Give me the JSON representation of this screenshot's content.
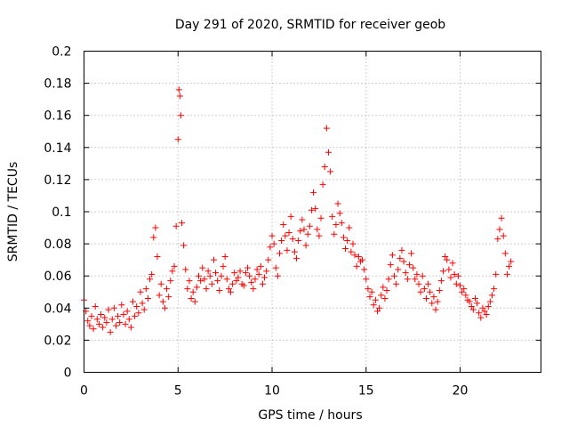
{
  "chart_data": {
    "type": "scatter",
    "title": "Day 291 of 2020, SRMTID for receiver geob",
    "xlabel": "GPS time / hours",
    "ylabel": "SRMTID / TECUs",
    "xlim": [
      0,
      24.3
    ],
    "ylim": [
      0,
      0.2
    ],
    "xticks": [
      0,
      5,
      10,
      15,
      20
    ],
    "xtick_labels": [
      "0",
      "5",
      "10",
      "15",
      "20"
    ],
    "yticks": [
      0,
      0.02,
      0.04,
      0.06,
      0.08,
      0.1,
      0.12,
      0.14,
      0.16,
      0.18,
      0.2
    ],
    "ytick_labels": [
      "0",
      "0.02",
      "0.04",
      "0.06",
      "0.08",
      "0.1",
      "0.12",
      "0.14",
      "0.16",
      "0.18",
      "0.2"
    ],
    "grid": true,
    "marker": "+",
    "color": "#ff0000",
    "series": [
      {
        "name": "SRMTID",
        "x": [
          0.0,
          0.1,
          0.2,
          0.3,
          0.4,
          0.5,
          0.6,
          0.7,
          0.8,
          0.9,
          1.0,
          1.1,
          1.2,
          1.3,
          1.4,
          1.5,
          1.6,
          1.7,
          1.8,
          1.9,
          2.0,
          2.1,
          2.2,
          2.3,
          2.4,
          2.5,
          2.6,
          2.7,
          2.8,
          2.9,
          3.0,
          3.1,
          3.2,
          3.3,
          3.4,
          3.5,
          3.6,
          3.7,
          3.8,
          3.9,
          4.0,
          4.1,
          4.2,
          4.3,
          4.4,
          4.5,
          4.6,
          4.7,
          4.8,
          4.9,
          5.0,
          5.05,
          5.1,
          5.15,
          5.2,
          5.3,
          5.4,
          5.5,
          5.6,
          5.7,
          5.8,
          5.9,
          6.0,
          6.1,
          6.2,
          6.3,
          6.4,
          6.5,
          6.6,
          6.7,
          6.8,
          6.9,
          7.0,
          7.1,
          7.2,
          7.3,
          7.4,
          7.5,
          7.6,
          7.7,
          7.8,
          7.9,
          8.0,
          8.1,
          8.2,
          8.3,
          8.4,
          8.5,
          8.6,
          8.7,
          8.8,
          8.9,
          9.0,
          9.1,
          9.2,
          9.3,
          9.4,
          9.5,
          9.6,
          9.7,
          9.8,
          9.9,
          10.0,
          10.1,
          10.2,
          10.3,
          10.4,
          10.5,
          10.6,
          10.7,
          10.8,
          10.9,
          11.0,
          11.1,
          11.2,
          11.3,
          11.4,
          11.5,
          11.6,
          11.7,
          11.8,
          11.9,
          12.0,
          12.1,
          12.2,
          12.3,
          12.4,
          12.5,
          12.6,
          12.7,
          12.8,
          12.9,
          13.0,
          13.1,
          13.2,
          13.3,
          13.4,
          13.5,
          13.6,
          13.7,
          13.8,
          13.9,
          14.0,
          14.1,
          14.2,
          14.3,
          14.4,
          14.5,
          14.6,
          14.7,
          14.8,
          14.9,
          15.0,
          15.1,
          15.2,
          15.3,
          15.4,
          15.5,
          15.6,
          15.7,
          15.8,
          15.9,
          16.0,
          16.1,
          16.2,
          16.3,
          16.4,
          16.5,
          16.6,
          16.7,
          16.8,
          16.9,
          17.0,
          17.1,
          17.2,
          17.3,
          17.4,
          17.5,
          17.6,
          17.7,
          17.8,
          17.9,
          18.0,
          18.1,
          18.2,
          18.3,
          18.4,
          18.5,
          18.6,
          18.7,
          18.8,
          18.9,
          19.0,
          19.1,
          19.2,
          19.3,
          19.4,
          19.5,
          19.6,
          19.7,
          19.8,
          19.9,
          20.0,
          20.1,
          20.2,
          20.3,
          20.4,
          20.5,
          20.6,
          20.7,
          20.8,
          20.9,
          21.0,
          21.1,
          21.2,
          21.3,
          21.4,
          21.5,
          21.6,
          21.7,
          21.8,
          21.9,
          22.0,
          22.1,
          22.2,
          22.3,
          22.4,
          22.5,
          22.6,
          22.7
        ],
        "y": [
          0.045,
          0.038,
          0.032,
          0.029,
          0.035,
          0.027,
          0.041,
          0.033,
          0.03,
          0.036,
          0.028,
          0.034,
          0.031,
          0.039,
          0.025,
          0.033,
          0.04,
          0.029,
          0.035,
          0.031,
          0.042,
          0.036,
          0.03,
          0.038,
          0.033,
          0.028,
          0.044,
          0.035,
          0.041,
          0.037,
          0.05,
          0.043,
          0.039,
          0.052,
          0.046,
          0.058,
          0.061,
          0.084,
          0.09,
          0.072,
          0.048,
          0.055,
          0.044,
          0.04,
          0.052,
          0.047,
          0.057,
          0.063,
          0.066,
          0.091,
          0.145,
          0.176,
          0.172,
          0.16,
          0.093,
          0.079,
          0.064,
          0.052,
          0.057,
          0.046,
          0.05,
          0.044,
          0.053,
          0.06,
          0.057,
          0.065,
          0.058,
          0.052,
          0.063,
          0.06,
          0.055,
          0.07,
          0.062,
          0.057,
          0.051,
          0.06,
          0.066,
          0.072,
          0.058,
          0.052,
          0.05,
          0.055,
          0.062,
          0.057,
          0.059,
          0.063,
          0.055,
          0.054,
          0.062,
          0.065,
          0.06,
          0.056,
          0.052,
          0.058,
          0.064,
          0.061,
          0.066,
          0.055,
          0.059,
          0.063,
          0.07,
          0.078,
          0.085,
          0.08,
          0.065,
          0.06,
          0.074,
          0.082,
          0.092,
          0.085,
          0.076,
          0.087,
          0.097,
          0.083,
          0.075,
          0.071,
          0.082,
          0.088,
          0.095,
          0.089,
          0.079,
          0.086,
          0.091,
          0.101,
          0.112,
          0.102,
          0.089,
          0.085,
          0.096,
          0.117,
          0.128,
          0.152,
          0.137,
          0.125,
          0.097,
          0.086,
          0.092,
          0.105,
          0.099,
          0.093,
          0.084,
          0.077,
          0.082,
          0.09,
          0.075,
          0.08,
          0.073,
          0.066,
          0.072,
          0.069,
          0.07,
          0.064,
          0.058,
          0.052,
          0.047,
          0.05,
          0.042,
          0.045,
          0.038,
          0.04,
          0.048,
          0.053,
          0.046,
          0.051,
          0.058,
          0.067,
          0.073,
          0.06,
          0.055,
          0.064,
          0.071,
          0.076,
          0.069,
          0.062,
          0.058,
          0.067,
          0.074,
          0.065,
          0.058,
          0.061,
          0.055,
          0.05,
          0.06,
          0.052,
          0.046,
          0.055,
          0.05,
          0.043,
          0.047,
          0.039,
          0.044,
          0.051,
          0.057,
          0.063,
          0.072,
          0.07,
          0.064,
          0.059,
          0.068,
          0.061,
          0.055,
          0.06,
          0.054,
          0.05,
          0.052,
          0.048,
          0.045,
          0.044,
          0.041,
          0.039,
          0.046,
          0.043,
          0.037,
          0.034,
          0.04,
          0.038,
          0.036,
          0.041,
          0.044,
          0.048,
          0.052,
          0.061,
          0.083,
          0.089,
          0.096,
          0.085,
          0.074,
          0.061,
          0.066,
          0.069
        ]
      }
    ]
  }
}
